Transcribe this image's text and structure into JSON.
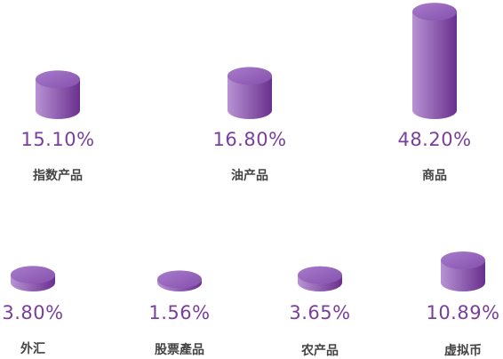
{
  "chart_data": {
    "type": "bar",
    "title": "",
    "colors": {
      "light": "#b08ad0",
      "dark": "#6a2f8e",
      "top": "#9a6cc0",
      "label": "#7a3f9c",
      "category": "#444444"
    },
    "items": [
      {
        "category": "指数产品",
        "value": 15.1,
        "label": "15.10%"
      },
      {
        "category": "油产品",
        "value": 16.8,
        "label": "16.80%"
      },
      {
        "category": "商品",
        "value": 48.2,
        "label": "48.20%"
      },
      {
        "category": "外汇",
        "value": 3.8,
        "label": "3.80%"
      },
      {
        "category": "股票產品",
        "value": 1.56,
        "label": "1.56%"
      },
      {
        "category": "农产品",
        "value": 3.65,
        "label": "3.65%"
      },
      {
        "category": "虚拟币",
        "value": 10.89,
        "label": "10.89%"
      }
    ]
  }
}
